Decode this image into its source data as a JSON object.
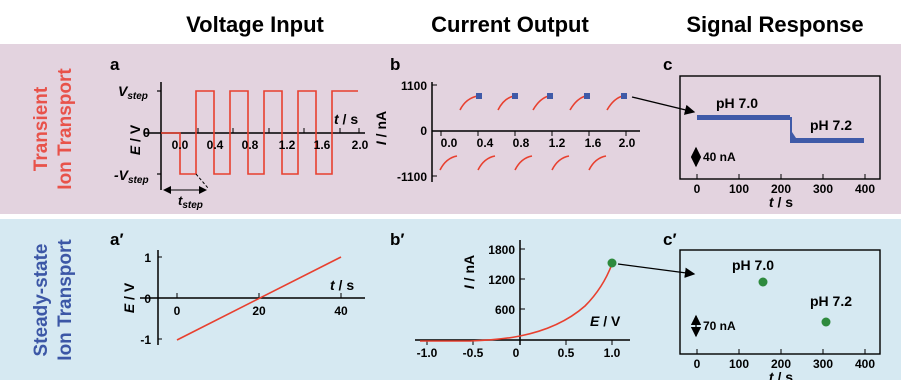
{
  "header": {
    "voltage_input": "Voltage Input",
    "current_output": "Current Output",
    "signal_response": "Signal Response"
  },
  "rows": {
    "transient": {
      "line1": "Transient",
      "line2": "Ion Transport"
    },
    "steady": {
      "line1": "Steady-state",
      "line2": "Ion Transport"
    }
  },
  "colors": {
    "transient_bg": "#e3d3df",
    "steady_bg": "#d6e9f2",
    "transient_text": "#e8524a",
    "steady_text": "#3c57a6",
    "trace_red": "#e8402f",
    "marker_blue": "#3f5aa8",
    "marker_green": "#2e8a3e"
  },
  "panels": {
    "a": {
      "label": "a",
      "v_step_top": "V",
      "v_step_top_sub": "step",
      "v_step_bottom": "-V",
      "v_step_bottom_sub": "step",
      "t_step": "t",
      "t_step_sub": "step",
      "ylabel_italic": "E",
      "ylabel_unit": " / V",
      "xlabel_italic": "t",
      "xlabel_unit": " / s",
      "y_zero": "0",
      "x_ticks": [
        "0.0",
        "0.4",
        "0.8",
        "1.2",
        "1.6",
        "2.0"
      ]
    },
    "b": {
      "label": "b",
      "ylabel_italic": "I",
      "ylabel_unit": " / nA",
      "y_ticks": [
        "1100",
        "0",
        "-1100"
      ],
      "x_ticks": [
        "0.0",
        "0.4",
        "0.8",
        "1.2",
        "1.6",
        "2.0"
      ]
    },
    "c": {
      "label": "c",
      "annotation_left": "pH 7.0",
      "annotation_right": "pH 7.2",
      "scale_bar": "40 nA",
      "x_ticks": [
        "0",
        "100",
        "200",
        "300",
        "400"
      ],
      "xlabel_italic": "t",
      "xlabel_unit": " / s"
    },
    "a2": {
      "label": "a′",
      "ylabel_italic": "E",
      "ylabel_unit": " / V",
      "y_ticks": [
        "1",
        "0",
        "-1"
      ],
      "x_ticks": [
        "0",
        "20",
        "40"
      ],
      "xlabel_italic": "t",
      "xlabel_unit": " / s"
    },
    "b2": {
      "label": "b′",
      "ylabel_italic": "I",
      "ylabel_unit": " / nA",
      "y_ticks": [
        "1800",
        "1200",
        "600"
      ],
      "x_ticks": [
        "-1.0",
        "-0.5",
        "0",
        "0.5",
        "1.0"
      ],
      "xlabel_italic": "E",
      "xlabel_unit": " / V"
    },
    "c2": {
      "label": "c′",
      "annotation_left": "pH 7.0",
      "annotation_right": "pH 7.2",
      "scale_bar": "70 nA",
      "x_ticks": [
        "0",
        "100",
        "200",
        "300",
        "400"
      ],
      "xlabel_italic": "t",
      "xlabel_unit": " / s"
    }
  }
}
